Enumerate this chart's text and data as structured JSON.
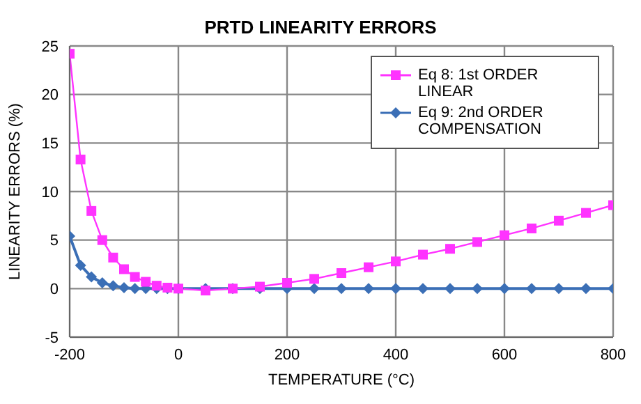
{
  "chart_data": {
    "type": "line",
    "title": "PRTD LINEARITY ERRORS",
    "xlabel": "TEMPERATURE (°C)",
    "ylabel": "LINEARITY ERRORS (%)",
    "x": [
      -200,
      -180,
      -160,
      -140,
      -120,
      -100,
      -80,
      -60,
      -40,
      -20,
      0,
      50,
      100,
      150,
      200,
      250,
      300,
      350,
      400,
      450,
      500,
      550,
      600,
      650,
      700,
      750,
      800
    ],
    "series": [
      {
        "name": "Eq 8: 1st ORDER LINEAR",
        "color": "#ff33ff",
        "marker": "square",
        "values": [
          24.2,
          13.3,
          8.0,
          5.0,
          3.2,
          2.0,
          1.2,
          0.7,
          0.3,
          0.1,
          0,
          -0.2,
          0,
          0.2,
          0.6,
          1.0,
          1.6,
          2.2,
          2.8,
          3.5,
          4.1,
          4.8,
          5.5,
          6.2,
          7.0,
          7.8,
          8.6
        ]
      },
      {
        "name": "Eq 9: 2nd ORDER COMPENSATION",
        "color": "#3b6fb6",
        "marker": "diamond",
        "values": [
          5.4,
          2.4,
          1.2,
          0.6,
          0.3,
          0.1,
          0,
          0,
          0,
          0,
          0,
          0,
          0,
          0,
          0,
          0,
          0,
          0,
          0,
          0,
          0,
          0,
          0,
          0,
          0,
          0,
          0
        ]
      }
    ],
    "xlim": [
      -200,
      800
    ],
    "xticks": [
      -200,
      0,
      200,
      400,
      600,
      800
    ],
    "ylim": [
      -5,
      25
    ],
    "yticks": [
      -5,
      0,
      5,
      10,
      15,
      20,
      25
    ],
    "grid": true,
    "legend": "top right"
  }
}
